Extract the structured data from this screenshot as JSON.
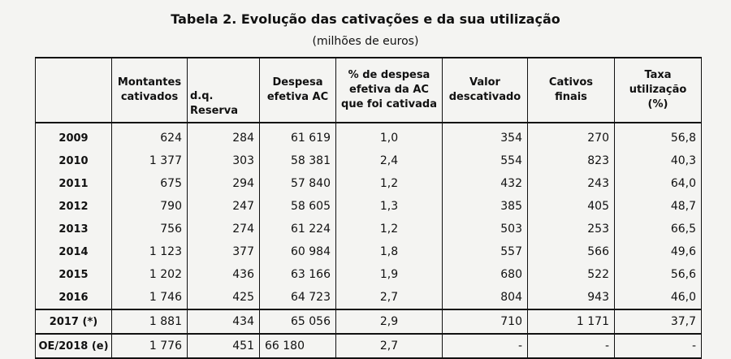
{
  "title": "Tabela 2. Evolução das cativações e da sua utilização",
  "subtitle": "(milhões de euros)",
  "headers": {
    "year": "",
    "montantes": [
      "Montantes",
      "cativados"
    ],
    "dq": [
      "d.q.",
      "Reserva"
    ],
    "despesa": [
      "Despesa",
      "efetiva AC"
    ],
    "pct": [
      "% de despesa",
      "efetiva da AC",
      "que foi cativada"
    ],
    "valor": [
      "Valor",
      "descativado"
    ],
    "cativos": [
      "Cativos",
      "finais"
    ],
    "taxa": [
      "Taxa",
      "utilização",
      "(%)"
    ]
  },
  "rows": [
    {
      "year": "2009",
      "montantes": "624",
      "dq": "284",
      "despesa": "61 619",
      "pct": "1,0",
      "valor": "354",
      "cativos": "270",
      "taxa": "56,8"
    },
    {
      "year": "2010",
      "montantes": "1 377",
      "dq": "303",
      "despesa": "58 381",
      "pct": "2,4",
      "valor": "554",
      "cativos": "823",
      "taxa": "40,3"
    },
    {
      "year": "2011",
      "montantes": "675",
      "dq": "294",
      "despesa": "57 840",
      "pct": "1,2",
      "valor": "432",
      "cativos": "243",
      "taxa": "64,0"
    },
    {
      "year": "2012",
      "montantes": "790",
      "dq": "247",
      "despesa": "58 605",
      "pct": "1,3",
      "valor": "385",
      "cativos": "405",
      "taxa": "48,7"
    },
    {
      "year": "2013",
      "montantes": "756",
      "dq": "274",
      "despesa": "61 224",
      "pct": "1,2",
      "valor": "503",
      "cativos": "253",
      "taxa": "66,5"
    },
    {
      "year": "2014",
      "montantes": "1 123",
      "dq": "377",
      "despesa": "60 984",
      "pct": "1,8",
      "valor": "557",
      "cativos": "566",
      "taxa": "49,6"
    },
    {
      "year": "2015",
      "montantes": "1 202",
      "dq": "436",
      "despesa": "63 166",
      "pct": "1,9",
      "valor": "680",
      "cativos": "522",
      "taxa": "56,6"
    },
    {
      "year": "2016",
      "montantes": "1 746",
      "dq": "425",
      "despesa": "64 723",
      "pct": "2,7",
      "valor": "804",
      "cativos": "943",
      "taxa": "46,0"
    },
    {
      "year": "2017 (*)",
      "montantes": "1 881",
      "dq": "434",
      "despesa": "65 056",
      "pct": "2,9",
      "valor": "710",
      "cativos": "1 171",
      "taxa": "37,7"
    },
    {
      "year": "OE/2018 (e)",
      "montantes": "1 776",
      "dq": "451",
      "despesa": "66 180",
      "pct": "2,7",
      "valor": "-",
      "cativos": "-",
      "taxa": "-"
    }
  ]
}
